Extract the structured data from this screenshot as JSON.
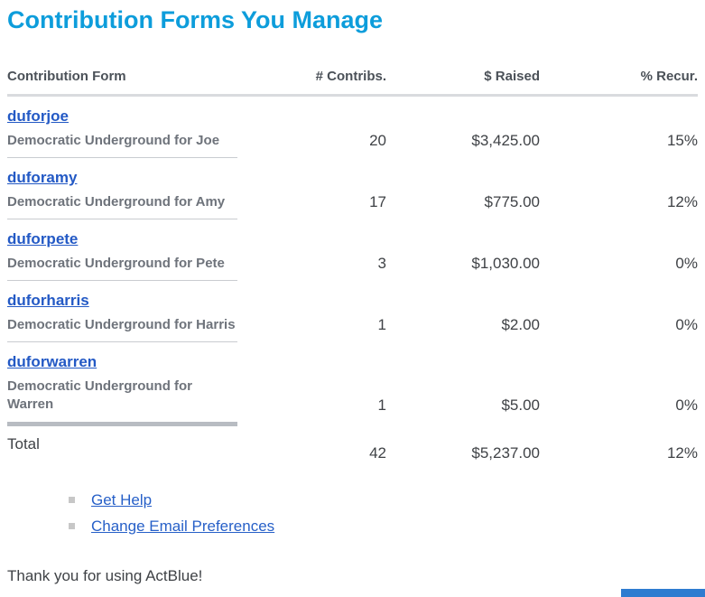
{
  "page": {
    "title": "Contribution Forms You Manage",
    "thank_you": "Thank you for using ActBlue!"
  },
  "table": {
    "columns": [
      "Contribution Form",
      "# Contribs.",
      "$ Raised",
      "% Recur."
    ],
    "rows": [
      {
        "slug": "duforjoe",
        "description": "Democratic Underground for Joe",
        "contribs": "20",
        "raised": "$3,425.00",
        "recurring": "15%"
      },
      {
        "slug": "duforamy",
        "description": "Democratic Underground for Amy",
        "contribs": "17",
        "raised": "$775.00",
        "recurring": "12%"
      },
      {
        "slug": "duforpete",
        "description": "Democratic Underground for Pete",
        "contribs": "3",
        "raised": "$1,030.00",
        "recurring": "0%"
      },
      {
        "slug": "duforharris",
        "description": "Democratic Underground for Harris",
        "contribs": "1",
        "raised": "$2.00",
        "recurring": "0%"
      },
      {
        "slug": "duforwarren",
        "description": "Democratic Underground for Warren",
        "contribs": "1",
        "raised": "$5.00",
        "recurring": "0%"
      }
    ],
    "total": {
      "label": "Total",
      "contribs": "42",
      "raised": "$5,237.00",
      "recurring": "12%"
    }
  },
  "footer_links": [
    {
      "label": "Get Help"
    },
    {
      "label": "Change Email Preferences"
    }
  ],
  "colors": {
    "title": "#0d9ddb",
    "link": "#2359c5",
    "footer_link": "#2760c8",
    "muted_text": "#6e737b",
    "header_text": "#4b5158",
    "body_text": "#3f4246",
    "divider_light": "#d9dbde",
    "divider": "#c9ccd0",
    "divider_thick": "#b8bcc2",
    "bullet": "#c7c7c7",
    "footer_bar": "#2e7cd0"
  }
}
